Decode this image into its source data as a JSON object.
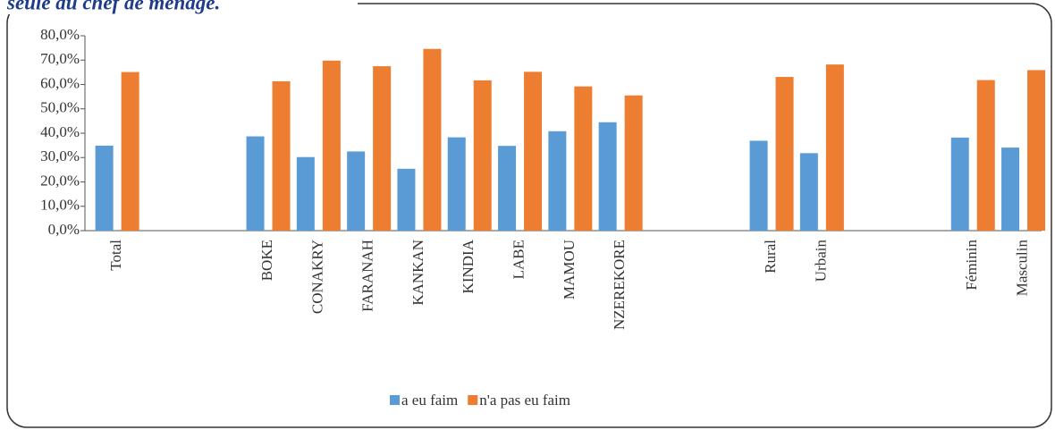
{
  "chart_data": {
    "type": "bar",
    "title": "seule du chef de ménage.",
    "categories": [
      "Total",
      null,
      null,
      "BOKE",
      "CONAKRY",
      "FARANAH",
      "KANKAN",
      "KINDIA",
      "LABE",
      "MAMOU",
      "NZEREKORE",
      null,
      null,
      "Rural",
      "Urbain",
      null,
      null,
      "Féminin",
      "Masculin"
    ],
    "series": [
      {
        "name": "a eu faim",
        "color": "#5b9bd5",
        "values": [
          34.9,
          null,
          null,
          38.7,
          30.2,
          32.5,
          25.4,
          38.3,
          34.8,
          40.8,
          44.5,
          null,
          null,
          36.9,
          31.8,
          null,
          null,
          38.2,
          34.1
        ]
      },
      {
        "name": "n'a pas eu faim",
        "color": "#ed7d31",
        "values": [
          65.1,
          null,
          null,
          61.3,
          69.8,
          67.5,
          74.6,
          61.7,
          65.2,
          59.2,
          55.5,
          null,
          null,
          63.1,
          68.2,
          null,
          null,
          61.8,
          65.9
        ]
      }
    ],
    "ylim": [
      0,
      80
    ],
    "yticks": [
      {
        "value": 0,
        "label": "0,0%"
      },
      {
        "value": 10,
        "label": "10,0%"
      },
      {
        "value": 20,
        "label": "20,0%"
      },
      {
        "value": 30,
        "label": "30,0%"
      },
      {
        "value": 40,
        "label": "40,0%"
      },
      {
        "value": 50,
        "label": "50,0%"
      },
      {
        "value": 60,
        "label": "60,0%"
      },
      {
        "value": 70,
        "label": "70,0%"
      },
      {
        "value": 80,
        "label": "80,0%"
      }
    ],
    "legend": "bottom"
  }
}
